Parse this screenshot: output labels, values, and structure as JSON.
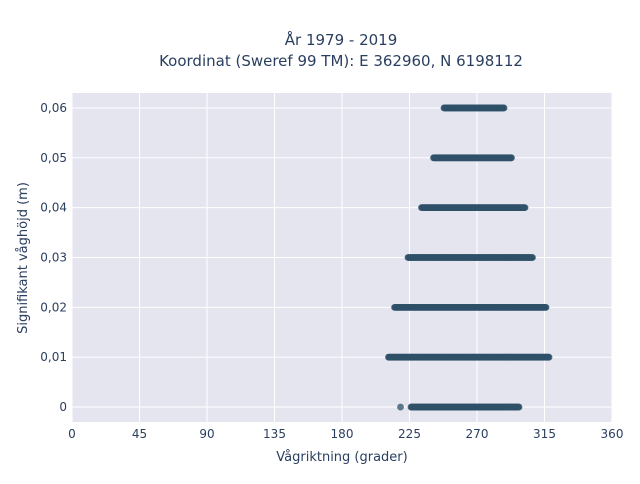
{
  "chart_data": {
    "type": "scatter",
    "title": "År 1979 - 2019",
    "subtitle": "Koordinat (Sweref 99 TM): E 362960, N 6198112",
    "xlabel": "Vågriktning (grader)",
    "ylabel": "Signifikant våghöjd (m)",
    "xlim": [
      0,
      360
    ],
    "ylim": [
      -0.003,
      0.063
    ],
    "x_ticks": [
      0,
      45,
      90,
      135,
      180,
      225,
      270,
      315,
      360
    ],
    "x_tick_labels": [
      "0",
      "45",
      "90",
      "135",
      "180",
      "225",
      "270",
      "315",
      "360"
    ],
    "y_ticks": [
      0,
      0.01,
      0.02,
      0.03,
      0.04,
      0.05,
      0.06
    ],
    "y_tick_labels": [
      "0",
      "0,01",
      "0,02",
      "0,03",
      "0,04",
      "0,05",
      "0,06"
    ],
    "grid": true,
    "background": "#e5e5f0",
    "marker_color": "#2e5068",
    "series": [
      {
        "values": [
          {
            "y": 0,
            "x_range": [
              226,
              298
            ]
          },
          {
            "y": 0.01,
            "x_range": [
              211,
              318
            ]
          },
          {
            "y": 0.02,
            "x_range": [
              215,
              316
            ]
          },
          {
            "y": 0.03,
            "x_range": [
              224,
              307
            ]
          },
          {
            "y": 0.04,
            "x_range": [
              233,
              302
            ]
          },
          {
            "y": 0.05,
            "x_range": [
              241,
              293
            ]
          },
          {
            "y": 0.06,
            "x_range": [
              248,
              288
            ]
          }
        ],
        "outliers": [
          {
            "x": 219,
            "y": 0
          }
        ]
      }
    ]
  }
}
